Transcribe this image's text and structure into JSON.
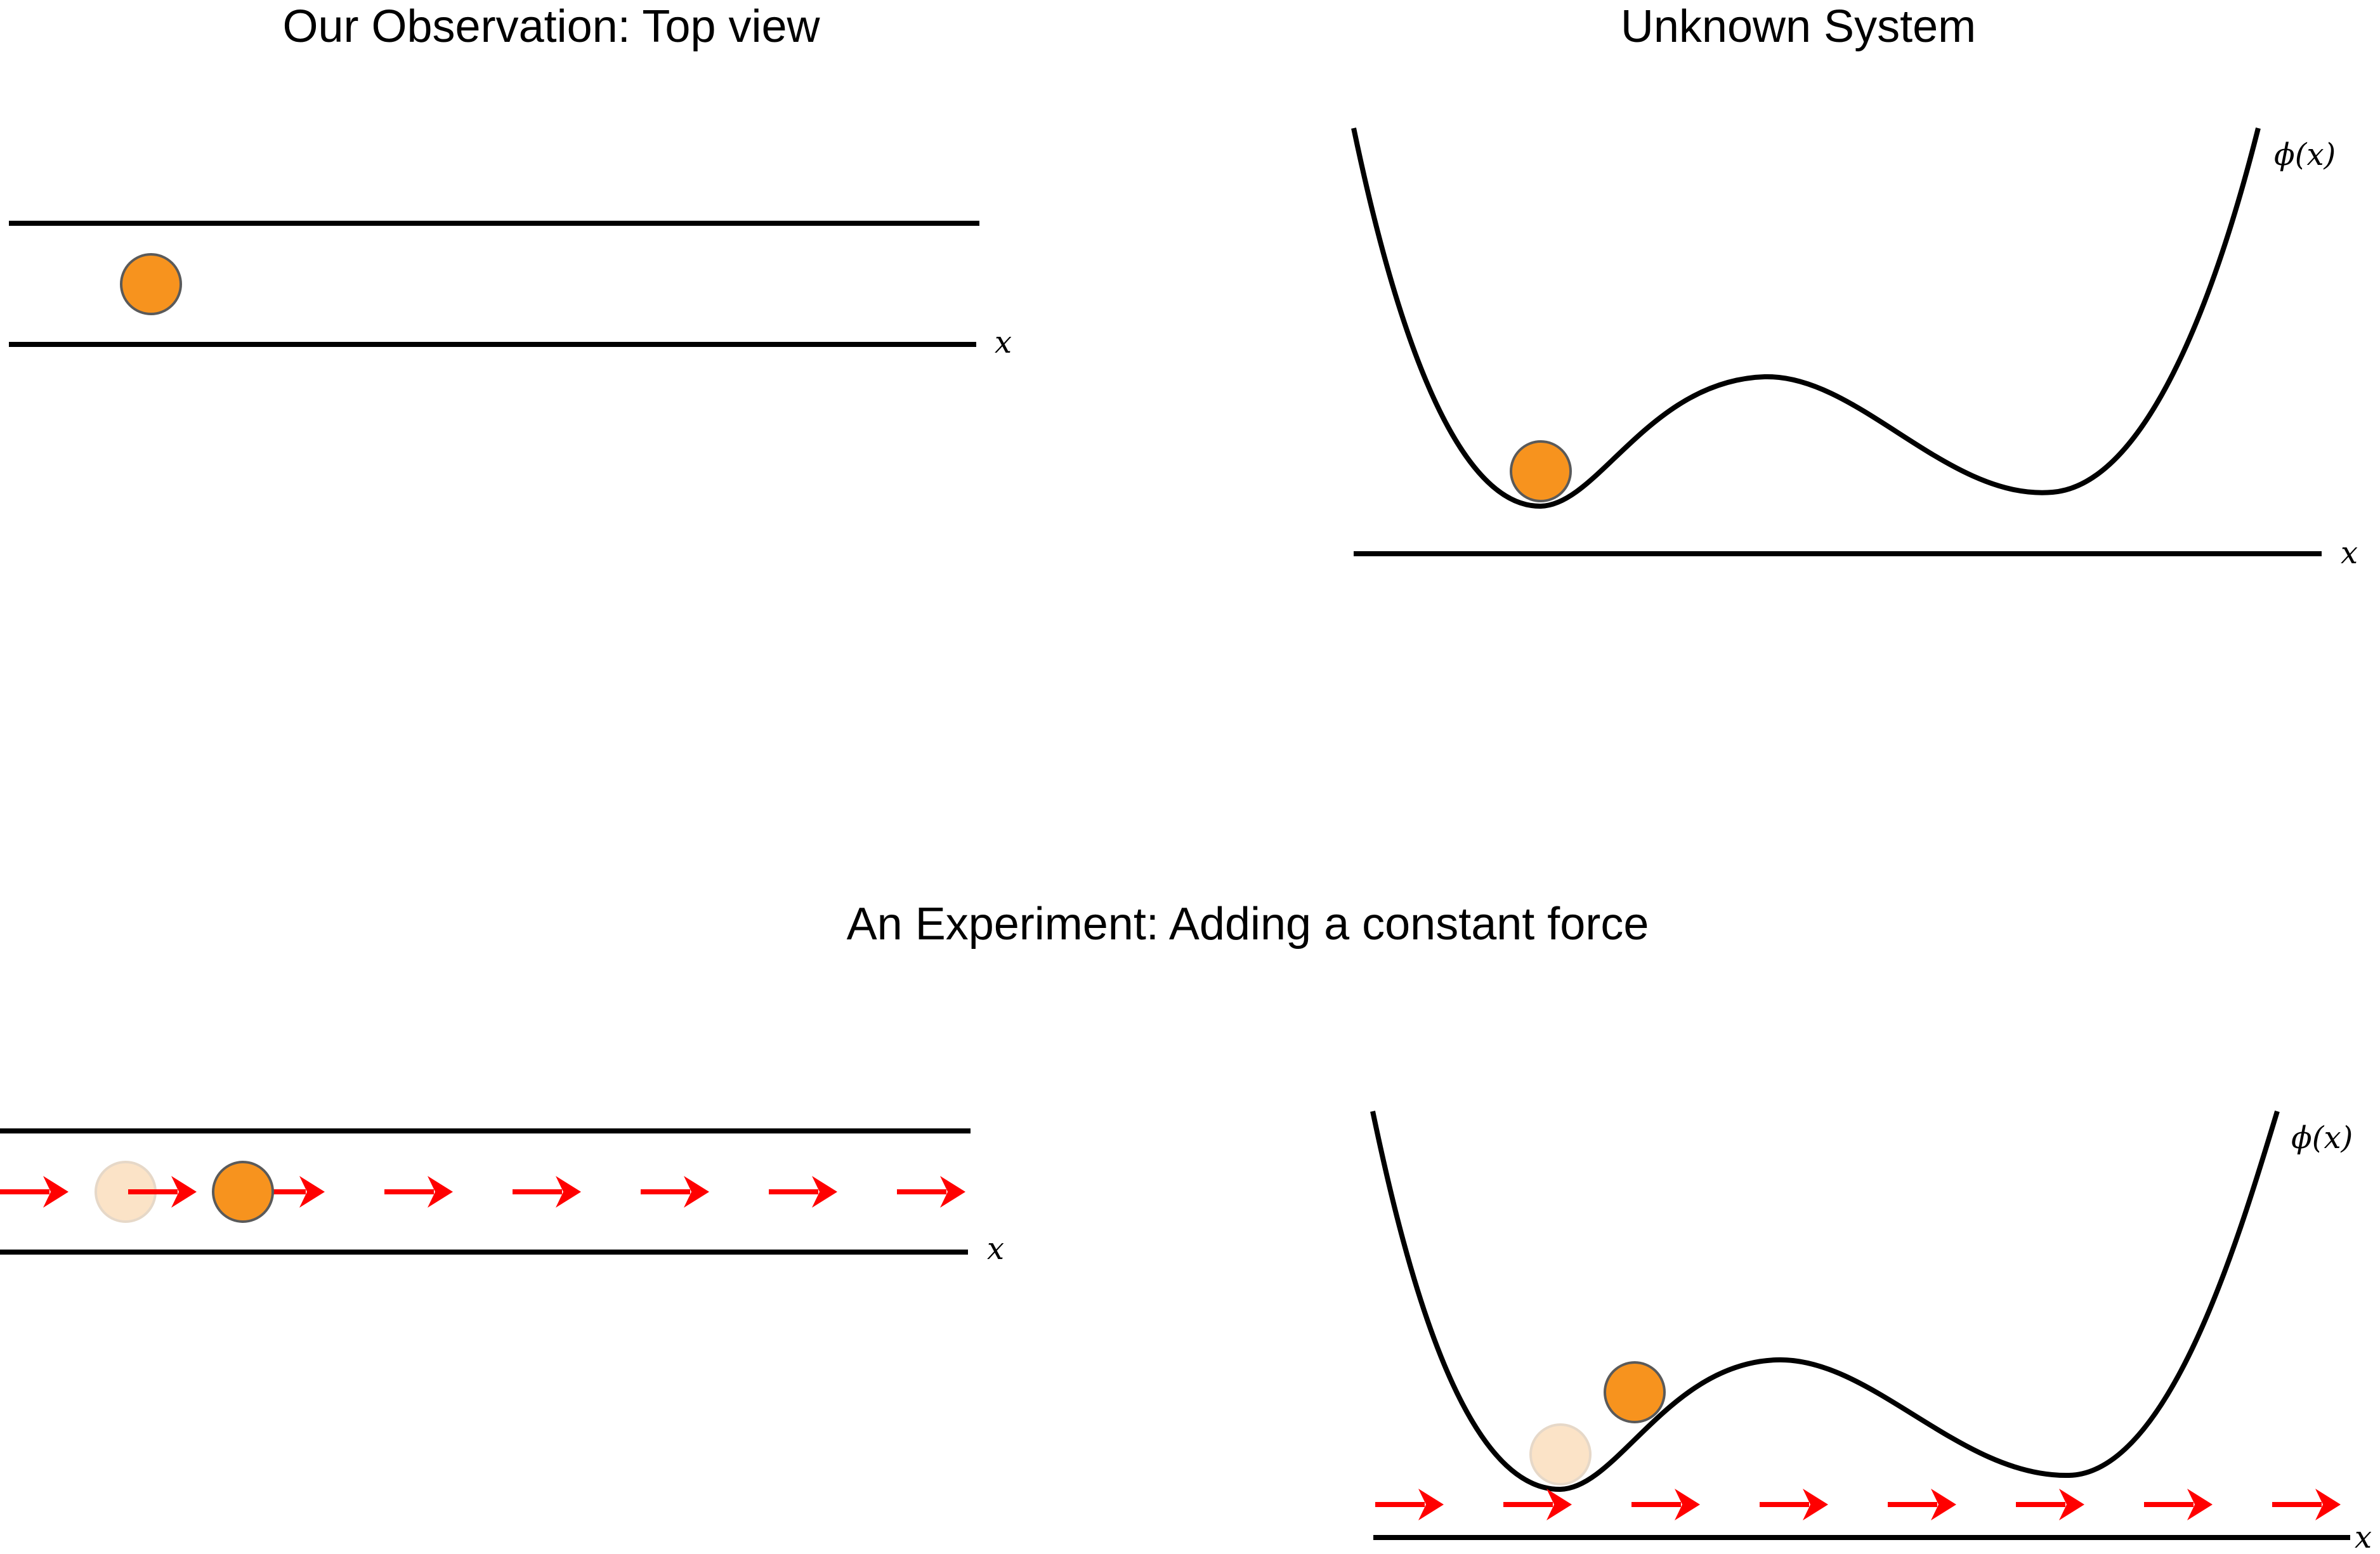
{
  "titles": {
    "top_left": "Our Observation: Top view",
    "top_right": "Unknown System",
    "bottom": "An Experiment: Adding a constant force"
  },
  "labels": {
    "x": "x",
    "phi": "ϕ(x)"
  },
  "colors": {
    "ball_fill": "#F7931E",
    "ball_stroke": "#5A5A5A",
    "ghost_fill": "#FBE3C7",
    "ghost_stroke": "#E6D8C8",
    "force_arrow": "#FF0000",
    "line": "#000000"
  },
  "diagram_elements": {
    "force_arrow_icon": "right-arrow",
    "ball_icon": "orange-circle",
    "ghost_ball_icon": "faded-circle"
  }
}
